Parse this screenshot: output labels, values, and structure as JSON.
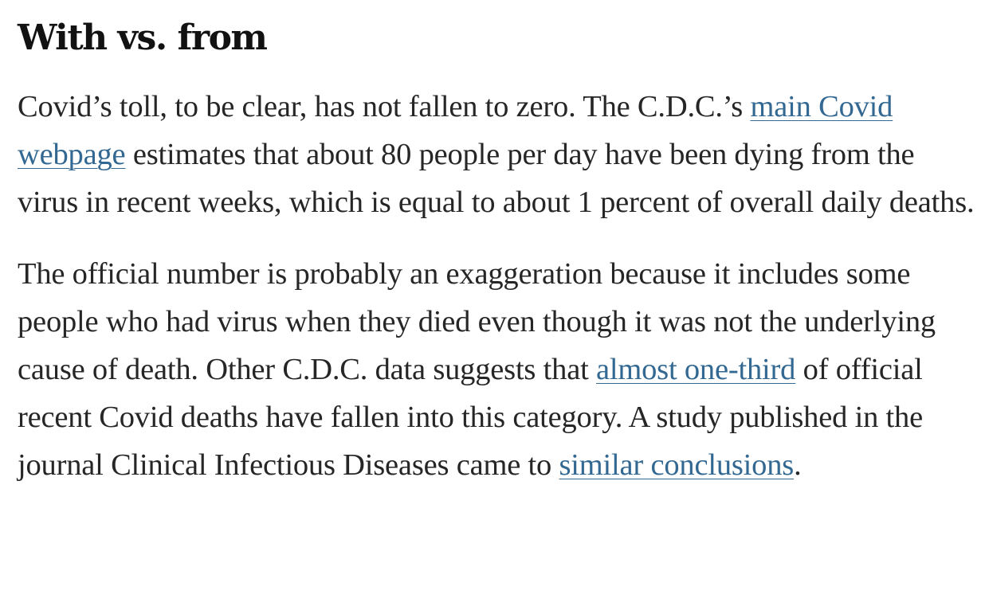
{
  "heading": "With vs. from",
  "paragraph1": {
    "text_a": "Covid’s toll, to be clear, has not fallen to zero. The C.D.C.’s ",
    "link_main": "main Covid webpage",
    "text_b": " estimates that about 80 people per day have been dying from the virus in recent weeks, which is equal to about 1 percent of overall daily deaths."
  },
  "paragraph2": {
    "text_a": "The official number is probably an exaggeration because it includes some people who had virus when they died even though it was not the underlying cause of death. Other C.D.C. data suggests that ",
    "link_one_third": "almost one-third",
    "text_b": " of official recent Covid deaths have fallen into this category. A study published in the journal Clinical Infectious Diseases came to ",
    "link_similar": "similar conclusions",
    "text_c": "."
  },
  "colors": {
    "text": "#262626",
    "heading": "#121212",
    "link": "#326891"
  }
}
